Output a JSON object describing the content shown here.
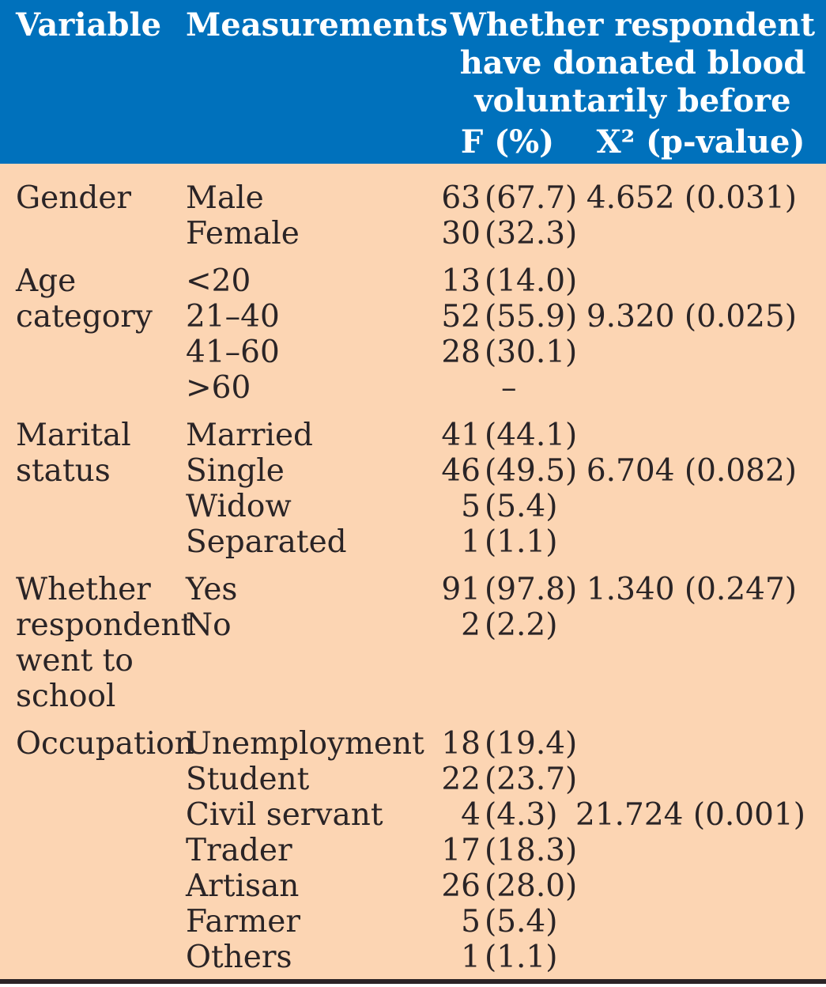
{
  "table": {
    "header": {
      "variable": "Variable",
      "measurements": "Measurements",
      "span_title_lines": [
        "Whether respondent",
        "have donated blood",
        "voluntarily before"
      ],
      "f_col": "F (%)",
      "x2_col": "X² (p-value)"
    },
    "groups": [
      {
        "variable_lines": [
          "Gender"
        ],
        "x2": "4.652 (0.031)",
        "x2_row": 0,
        "rows": [
          {
            "m": "Male",
            "f_cnt": "63",
            "f_pct": "(67.7)"
          },
          {
            "m": "Female",
            "f_cnt": "30",
            "f_pct": "(32.3)"
          }
        ]
      },
      {
        "variable_lines": [
          "Age",
          "category"
        ],
        "x2": "9.320 (0.025)",
        "x2_row": 1,
        "rows": [
          {
            "m": "<20",
            "f_cnt": "13",
            "f_pct": "(14.0)"
          },
          {
            "m": "21–40",
            "f_cnt": "52",
            "f_pct": "(55.9)"
          },
          {
            "m": "41–60",
            "f_cnt": "28",
            "f_pct": "(30.1)"
          },
          {
            "m": ">60",
            "f_cnt": "",
            "f_pct": "–"
          }
        ]
      },
      {
        "variable_lines": [
          "Marital",
          "status"
        ],
        "x2": "6.704 (0.082)",
        "x2_row": 1,
        "rows": [
          {
            "m": "Married",
            "f_cnt": "41",
            "f_pct": "(44.1)"
          },
          {
            "m": "Single",
            "f_cnt": "46",
            "f_pct": "(49.5)"
          },
          {
            "m": "Widow",
            "f_cnt": "5",
            "f_pct": "(5.4)"
          },
          {
            "m": "Separated",
            "f_cnt": "1",
            "f_pct": "(1.1)"
          }
        ]
      },
      {
        "variable_lines": [
          "Whether",
          "respondent",
          "went to",
          "school"
        ],
        "x2": "1.340 (0.247)",
        "x2_row": 0,
        "rows": [
          {
            "m": "Yes",
            "f_cnt": "91",
            "f_pct": "(97.8)"
          },
          {
            "m": "No",
            "f_cnt": "2",
            "f_pct": "(2.2)"
          }
        ]
      },
      {
        "variable_lines": [
          "Occupation"
        ],
        "x2": "21.724 (0.001)",
        "x2_row": 2,
        "rows": [
          {
            "m": "Unemployment",
            "f_cnt": "18",
            "f_pct": "(19.4)"
          },
          {
            "m": "Student",
            "f_cnt": "22",
            "f_pct": "(23.7)"
          },
          {
            "m": "Civil servant",
            "f_cnt": "4",
            "f_pct": "(4.3)"
          },
          {
            "m": "Trader",
            "f_cnt": "17",
            "f_pct": "(18.3)"
          },
          {
            "m": "Artisan",
            "f_cnt": "26",
            "f_pct": "(28.0)"
          },
          {
            "m": "Farmer",
            "f_cnt": "5",
            "f_pct": "(5.4)"
          },
          {
            "m": "Others",
            "f_cnt": "1",
            "f_pct": "(1.1)"
          }
        ]
      }
    ],
    "colors": {
      "header_bg": "#0071BC",
      "header_text": "#FFFFFF",
      "body_bg": "#FCD5B3",
      "body_text": "#2A2426",
      "bottom_rule": "#2B2426"
    }
  },
  "chart_data": {
    "type": "table",
    "title": "",
    "header_note": "Whether respondent have donated blood voluntarily before",
    "columns": [
      "Variable",
      "Measurements",
      "F (%)",
      "X² (p-value)"
    ],
    "rows": [
      [
        "Gender",
        "Male",
        "63 (67.7)",
        "4.652 (0.031)"
      ],
      [
        "",
        "Female",
        "30 (32.3)",
        ""
      ],
      [
        "Age category",
        "<20",
        "13 (14.0)",
        ""
      ],
      [
        "",
        "21–40",
        "52 (55.9)",
        "9.320 (0.025)"
      ],
      [
        "",
        "41–60",
        "28 (30.1)",
        ""
      ],
      [
        "",
        ">60",
        "–",
        ""
      ],
      [
        "Marital status",
        "Married",
        "41 (44.1)",
        ""
      ],
      [
        "",
        "Single",
        "46 (49.5)",
        "6.704 (0.082)"
      ],
      [
        "",
        "Widow",
        "5 (5.4)",
        ""
      ],
      [
        "",
        "Separated",
        "1 (1.1)",
        ""
      ],
      [
        "Whether respondent went to school",
        "Yes",
        "91 (97.8)",
        "1.340 (0.247)"
      ],
      [
        "",
        "No",
        "2 (2.2)",
        ""
      ],
      [
        "Occupation",
        "Unemployment",
        "18 (19.4)",
        ""
      ],
      [
        "",
        "Student",
        "22 (23.7)",
        ""
      ],
      [
        "",
        "Civil servant",
        "4 (4.3)",
        "21.724 (0.001)"
      ],
      [
        "",
        "Trader",
        "17 (18.3)",
        ""
      ],
      [
        "",
        "Artisan",
        "26 (28.0)",
        ""
      ],
      [
        "",
        "Farmer",
        "5 (5.4)",
        ""
      ],
      [
        "",
        "Others",
        "1 (1.1)",
        ""
      ]
    ]
  }
}
